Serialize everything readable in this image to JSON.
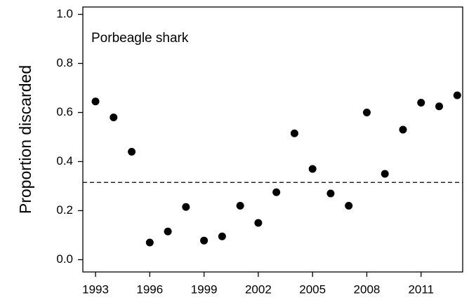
{
  "chart_data": {
    "type": "scatter",
    "ylabel": "Proportion discarded",
    "annotation": "Porbeagle shark",
    "x": [
      1993,
      1994,
      1995,
      1996,
      1997,
      1998,
      1999,
      2000,
      2001,
      2002,
      2003,
      2004,
      2005,
      2006,
      2007,
      2008,
      2009,
      2010,
      2011,
      2012,
      2013
    ],
    "values": [
      0.645,
      0.58,
      0.44,
      0.07,
      0.115,
      0.215,
      0.078,
      0.095,
      0.22,
      0.15,
      0.275,
      0.515,
      0.37,
      0.27,
      0.22,
      0.6,
      0.35,
      0.53,
      0.64,
      0.625,
      0.67
    ],
    "color": "#000000",
    "reference_line": 0.315,
    "xlim": [
      1992.3,
      2013.3
    ],
    "ylim": [
      -0.05,
      1.03
    ],
    "xticks": [
      1993,
      1996,
      1999,
      2002,
      2005,
      2008,
      2011
    ],
    "yticks": [
      {
        "value": 0,
        "label": "0.0"
      },
      0.2,
      0.4,
      0.6,
      0.8,
      {
        "value": 1,
        "label": "1.0"
      }
    ]
  }
}
